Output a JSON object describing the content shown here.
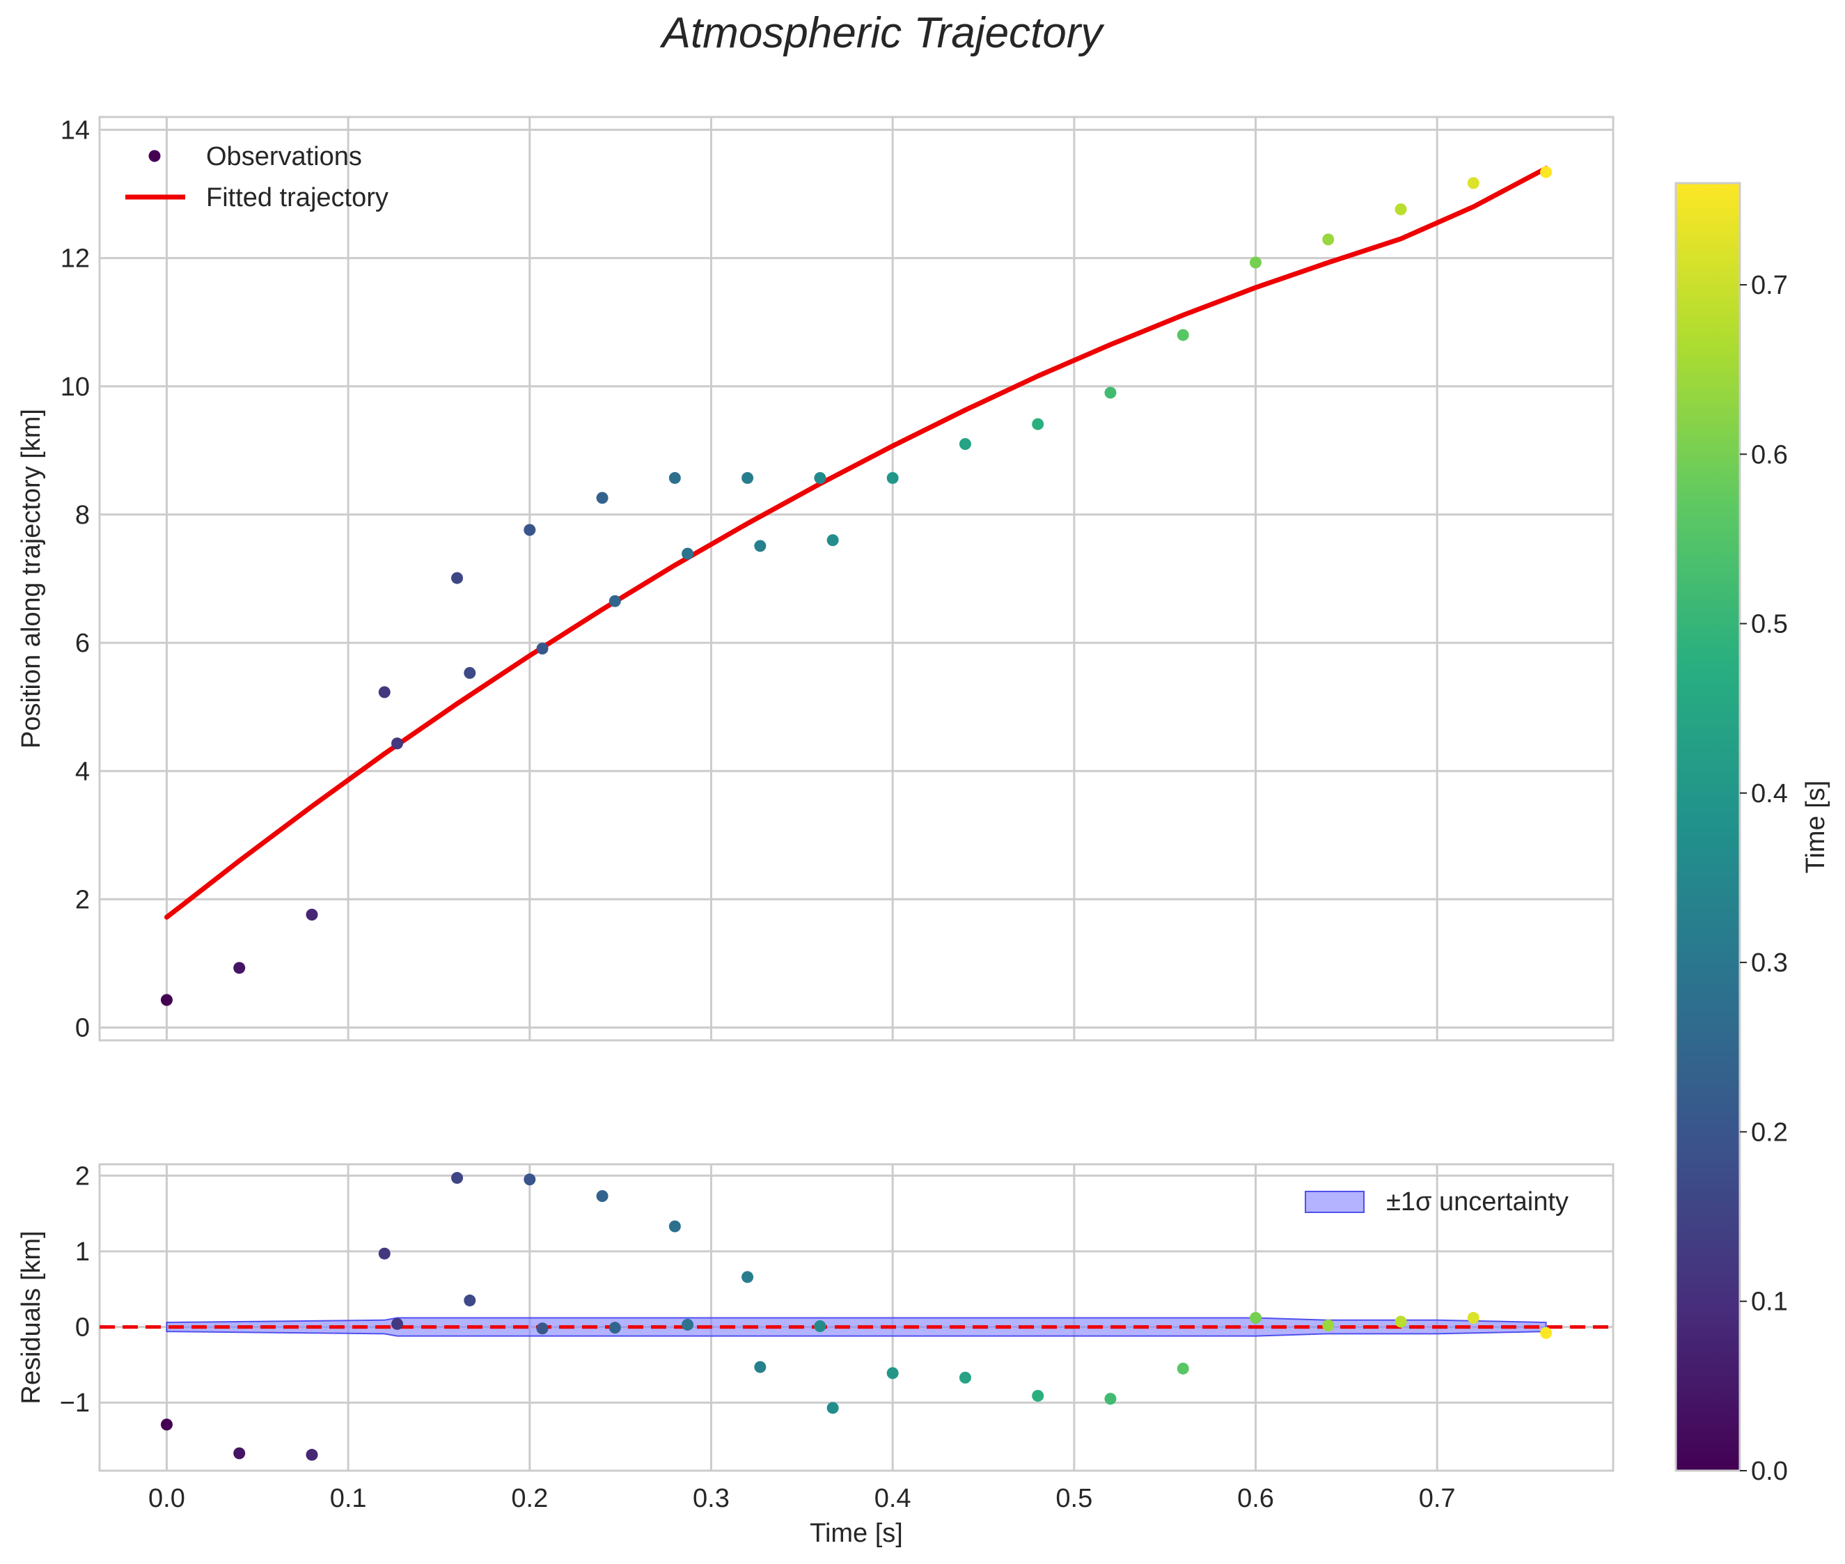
{
  "figure": {
    "title": "Atmospheric Trajectory"
  },
  "colors": {
    "fit_line": "#ee0000",
    "zero_line": "#ee0000",
    "band_fill": "#8080ff",
    "band_edge": "#5050ee",
    "grid": "#cccccc",
    "axes_edge": "#cccccc",
    "colormap": "viridis"
  },
  "chart_data": [
    {
      "id": "main",
      "type": "scatter",
      "xlabel": "",
      "ylabel": "Position along trajectory [km]",
      "xlim": [
        -0.037,
        0.797
      ],
      "ylim": [
        -0.2,
        14.2
      ],
      "xticks": [
        0.0,
        0.1,
        0.2,
        0.3,
        0.4,
        0.5,
        0.6,
        0.7
      ],
      "xticklabels": [],
      "yticks": [
        0,
        2,
        4,
        6,
        8,
        10,
        12,
        14
      ],
      "yticklabels": [
        "0",
        "2",
        "4",
        "6",
        "8",
        "10",
        "12",
        "14"
      ],
      "grid": true,
      "legend": {
        "location": "upper-left",
        "entries": [
          "Observations",
          "Fitted trajectory"
        ]
      },
      "series": [
        {
          "name": "Observations",
          "kind": "scatter",
          "color_by": "time",
          "points": [
            {
              "x": 0.0,
              "y": 0.43
            },
            {
              "x": 0.04,
              "y": 0.93
            },
            {
              "x": 0.08,
              "y": 1.76
            },
            {
              "x": 0.12,
              "y": 5.23
            },
            {
              "x": 0.127,
              "y": 4.43
            },
            {
              "x": 0.16,
              "y": 7.01
            },
            {
              "x": 0.167,
              "y": 5.53
            },
            {
              "x": 0.2,
              "y": 7.76
            },
            {
              "x": 0.207,
              "y": 5.91
            },
            {
              "x": 0.24,
              "y": 8.26
            },
            {
              "x": 0.247,
              "y": 6.65
            },
            {
              "x": 0.28,
              "y": 8.57
            },
            {
              "x": 0.287,
              "y": 7.39
            },
            {
              "x": 0.32,
              "y": 8.57
            },
            {
              "x": 0.327,
              "y": 7.51
            },
            {
              "x": 0.36,
              "y": 8.57
            },
            {
              "x": 0.367,
              "y": 7.6
            },
            {
              "x": 0.4,
              "y": 8.57
            },
            {
              "x": 0.44,
              "y": 9.1
            },
            {
              "x": 0.48,
              "y": 9.41
            },
            {
              "x": 0.52,
              "y": 9.9
            },
            {
              "x": 0.56,
              "y": 10.8
            },
            {
              "x": 0.6,
              "y": 11.93
            },
            {
              "x": 0.64,
              "y": 12.29
            },
            {
              "x": 0.68,
              "y": 12.76
            },
            {
              "x": 0.72,
              "y": 13.17
            },
            {
              "x": 0.76,
              "y": 13.34
            }
          ]
        },
        {
          "name": "Fitted trajectory",
          "kind": "line",
          "x": [
            0.0,
            0.04,
            0.08,
            0.12,
            0.16,
            0.2,
            0.24,
            0.28,
            0.32,
            0.36,
            0.4,
            0.44,
            0.48,
            0.52,
            0.56,
            0.6,
            0.64,
            0.68,
            0.72,
            0.76
          ],
          "y": [
            1.72,
            2.6,
            3.45,
            4.27,
            5.05,
            5.8,
            6.52,
            7.21,
            7.86,
            8.48,
            9.07,
            9.63,
            10.16,
            10.65,
            11.11,
            11.54,
            11.93,
            12.3,
            12.8,
            13.4
          ]
        }
      ]
    },
    {
      "id": "residuals",
      "type": "scatter",
      "xlabel": "Time [s]",
      "ylabel": "Residuals [km]",
      "xlim": [
        -0.037,
        0.797
      ],
      "ylim": [
        -1.9,
        2.15
      ],
      "xticks": [
        0.0,
        0.1,
        0.2,
        0.3,
        0.4,
        0.5,
        0.6,
        0.7
      ],
      "xticklabels": [
        "0.0",
        "0.1",
        "0.2",
        "0.3",
        "0.4",
        "0.5",
        "0.6",
        "0.7"
      ],
      "yticks": [
        -1,
        0,
        1,
        2
      ],
      "yticklabels": [
        "−1",
        "0",
        "1",
        "2"
      ],
      "grid": true,
      "reference_line": {
        "y": 0,
        "style": "dashed"
      },
      "legend": {
        "location": "upper-right",
        "entries": [
          "±1σ uncertainty"
        ]
      },
      "band": {
        "name": "±1σ uncertainty",
        "x": [
          0.0,
          0.12,
          0.127,
          0.2,
          0.3,
          0.4,
          0.5,
          0.56,
          0.6,
          0.64,
          0.7,
          0.76
        ],
        "upper": [
          0.06,
          0.09,
          0.12,
          0.12,
          0.12,
          0.12,
          0.12,
          0.12,
          0.12,
          0.09,
          0.09,
          0.06
        ],
        "lower": [
          -0.06,
          -0.09,
          -0.12,
          -0.12,
          -0.12,
          -0.12,
          -0.12,
          -0.12,
          -0.12,
          -0.09,
          -0.09,
          -0.06
        ]
      },
      "series": [
        {
          "name": "Residuals",
          "kind": "scatter",
          "color_by": "time",
          "points": [
            {
              "x": 0.0,
              "y": -1.29
            },
            {
              "x": 0.04,
              "y": -1.67
            },
            {
              "x": 0.08,
              "y": -1.69
            },
            {
              "x": 0.12,
              "y": 0.97
            },
            {
              "x": 0.127,
              "y": 0.04
            },
            {
              "x": 0.16,
              "y": 1.97
            },
            {
              "x": 0.167,
              "y": 0.35
            },
            {
              "x": 0.2,
              "y": 1.95
            },
            {
              "x": 0.207,
              "y": -0.02
            },
            {
              "x": 0.24,
              "y": 1.73
            },
            {
              "x": 0.247,
              "y": -0.01
            },
            {
              "x": 0.28,
              "y": 1.33
            },
            {
              "x": 0.287,
              "y": 0.03
            },
            {
              "x": 0.32,
              "y": 0.66
            },
            {
              "x": 0.327,
              "y": -0.53
            },
            {
              "x": 0.36,
              "y": 0.01
            },
            {
              "x": 0.367,
              "y": -1.07
            },
            {
              "x": 0.4,
              "y": -0.61
            },
            {
              "x": 0.44,
              "y": -0.67
            },
            {
              "x": 0.48,
              "y": -0.91
            },
            {
              "x": 0.52,
              "y": -0.95
            },
            {
              "x": 0.56,
              "y": -0.55
            },
            {
              "x": 0.6,
              "y": 0.12
            },
            {
              "x": 0.64,
              "y": 0.02
            },
            {
              "x": 0.68,
              "y": 0.07
            },
            {
              "x": 0.72,
              "y": 0.12
            },
            {
              "x": 0.76,
              "y": -0.08
            }
          ]
        }
      ]
    },
    {
      "id": "colorbar",
      "type": "heatmap",
      "label": "Time [s]",
      "range": [
        0.0,
        0.76
      ],
      "ticks": [
        0.0,
        0.1,
        0.2,
        0.3,
        0.4,
        0.5,
        0.6,
        0.7
      ],
      "ticklabels": [
        "0.0",
        "0.1",
        "0.2",
        "0.3",
        "0.4",
        "0.5",
        "0.6",
        "0.7"
      ]
    }
  ]
}
